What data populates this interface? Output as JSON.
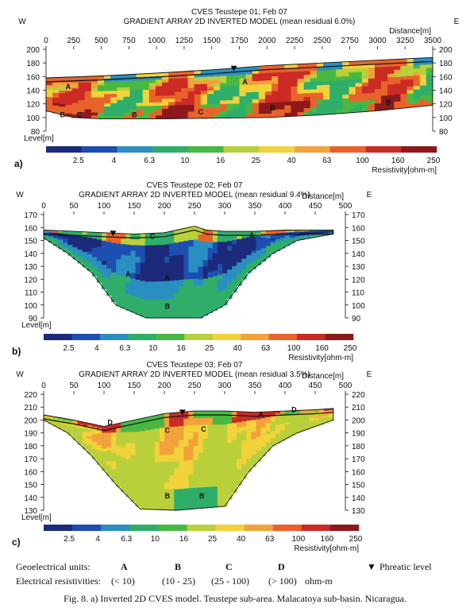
{
  "colors": {
    "ramp": [
      "#1c2a7a",
      "#1d4fb0",
      "#2a8fc0",
      "#2fae6a",
      "#49b843",
      "#b9d03a",
      "#f2d23a",
      "#f2a23a",
      "#e8632a",
      "#cc2a25",
      "#8c1a1c"
    ],
    "unit_A": "#2a3aa0",
    "unit_B": "#2fae6a",
    "unit_C": "#f2a23a",
    "unit_D": "#cc2a25",
    "outline": "#111111"
  },
  "chart_data": [
    {
      "type": "heatmap",
      "panel": "a)",
      "site_title": "CVES Teustepe 01; Feb 07",
      "title": "GRADIENT ARRAY 2D INVERTED MODEL (mean residual 6.0%)",
      "west": "W",
      "east": "E",
      "xlabel": "Distance[m]",
      "ylabel": "Level[m]",
      "xticks": [
        0,
        250,
        500,
        750,
        1000,
        1250,
        1500,
        1750,
        2000,
        2250,
        2500,
        2750,
        3000,
        3250,
        3500
      ],
      "xlim": [
        0,
        3500
      ],
      "yticks": [
        200,
        180,
        160,
        140,
        120,
        100,
        80
      ],
      "ylim": [
        80,
        200
      ],
      "surface": {
        "x": [
          0,
          500,
          1000,
          1500,
          1750,
          2000,
          2500,
          3000,
          3500
        ],
        "y": [
          158,
          161,
          165,
          170,
          173,
          176,
          180,
          184,
          188
        ]
      },
      "base": {
        "x": [
          0,
          250,
          500,
          1000,
          1500,
          2000,
          2500,
          3000,
          3500
        ],
        "y": [
          110,
          100,
          98,
          98,
          99,
          100,
          104,
          110,
          118
        ]
      },
      "phreatic_marker_x": 1700,
      "unit_labels": [
        {
          "text": "A",
          "x": 200,
          "y": 145
        },
        {
          "text": "A",
          "x": 1800,
          "y": 152
        },
        {
          "text": "B",
          "x": 150,
          "y": 104
        },
        {
          "text": "B",
          "x": 800,
          "y": 104
        },
        {
          "text": "B",
          "x": 2050,
          "y": 114
        },
        {
          "text": "B",
          "x": 3100,
          "y": 122
        },
        {
          "text": "C",
          "x": 300,
          "y": 104
        },
        {
          "text": "C",
          "x": 1400,
          "y": 108
        }
      ],
      "colorbar_ticks": [
        "2.5",
        "4",
        "6.3",
        "10",
        "16",
        "25",
        "40",
        "63",
        "100",
        "160",
        "250"
      ],
      "colorbar_label": "Resistivity[ohm-m]"
    },
    {
      "type": "heatmap",
      "panel": "b)",
      "site_title": "CVES Teustepe 02; Feb 07",
      "title": "GRADIENT ARRAY 2D INVERTED MODEL (mean residual 9.4%)",
      "west": "W",
      "east": "E",
      "xlabel": "Distance[m]",
      "ylabel": "Level[m]",
      "xticks": [
        0,
        50,
        100,
        150,
        200,
        250,
        300,
        350,
        400,
        450,
        500
      ],
      "xlim": [
        0,
        500
      ],
      "yticks": [
        170,
        160,
        150,
        140,
        130,
        120,
        110,
        100,
        90
      ],
      "ylim": [
        90,
        170
      ],
      "surface": {
        "x": [
          0,
          50,
          100,
          150,
          200,
          220,
          250,
          270,
          300,
          350,
          400,
          450,
          480
        ],
        "y": [
          158,
          157,
          156,
          155,
          156,
          158,
          161,
          158,
          157,
          157,
          158,
          158,
          158
        ]
      },
      "base": {
        "x": [
          0,
          40,
          80,
          120,
          170,
          260,
          300,
          340,
          380,
          420,
          480
        ],
        "y": [
          152,
          140,
          125,
          100,
          90,
          90,
          100,
          125,
          140,
          150,
          155
        ]
      },
      "phreatic_marker_x": 115,
      "unit_labels": [
        {
          "text": "A",
          "x": 140,
          "y": 124
        },
        {
          "text": "A",
          "x": 205,
          "y": 121
        },
        {
          "text": "A",
          "x": 345,
          "y": 154
        },
        {
          "text": "B",
          "x": 205,
          "y": 99
        },
        {
          "text": "C",
          "x": 180,
          "y": 153
        }
      ],
      "colorbar_ticks": [
        "2.5",
        "4",
        "6.3",
        "10",
        "16",
        "25",
        "40",
        "63",
        "100",
        "160",
        "250"
      ],
      "colorbar_label": "Resistivity[ohm-m]"
    },
    {
      "type": "heatmap",
      "panel": "c)",
      "site_title": "CVES Teustepe 03; Feb 07",
      "title": "GRADIENT ARRAY 2D INVERTED MODEL (mean residual 3.5%)",
      "west": "W",
      "east": "E",
      "xlabel": "Distance[m]",
      "ylabel": "Level[m]",
      "xticks": [
        0,
        50,
        100,
        150,
        200,
        250,
        300,
        350,
        400,
        450,
        500
      ],
      "xlim": [
        0,
        500
      ],
      "yticks": [
        220,
        210,
        200,
        190,
        180,
        170,
        160,
        150,
        140,
        130
      ],
      "ylim": [
        130,
        220
      ],
      "surface": {
        "x": [
          0,
          50,
          100,
          150,
          200,
          250,
          300,
          350,
          400,
          450,
          480
        ],
        "y": [
          204,
          200,
          195,
          200,
          205,
          207,
          207,
          206,
          207,
          208,
          209
        ]
      },
      "base": {
        "x": [
          0,
          40,
          80,
          120,
          160,
          220,
          300,
          340,
          380,
          420,
          480
        ],
        "y": [
          200,
          190,
          172,
          150,
          131,
          130,
          133,
          160,
          180,
          190,
          200
        ]
      },
      "phreatic_marker_x": 230,
      "unit_labels": [
        {
          "text": "A",
          "x": 360,
          "y": 204
        },
        {
          "text": "B",
          "x": 205,
          "y": 141
        },
        {
          "text": "B",
          "x": 262,
          "y": 141
        },
        {
          "text": "C",
          "x": 205,
          "y": 192
        },
        {
          "text": "C",
          "x": 265,
          "y": 193
        },
        {
          "text": "D",
          "x": 110,
          "y": 198
        },
        {
          "text": "D",
          "x": 415,
          "y": 208
        }
      ],
      "colorbar_ticks": [
        "2.5",
        "4",
        "6.3",
        "10",
        "16",
        "25",
        "40",
        "63",
        "100",
        "160",
        "250"
      ],
      "colorbar_label": "Resistivity[ohm-m]"
    }
  ],
  "legend": {
    "units_label": "Geoelectrical units:",
    "resist_label": "Electrical resistivities:",
    "units": [
      {
        "name": "A",
        "range": "(< 10)"
      },
      {
        "name": "B",
        "range": "(10 - 25)"
      },
      {
        "name": "C",
        "range": "(25 - 100)"
      },
      {
        "name": "D",
        "range": "(> 100)"
      }
    ],
    "unit_suffix": "ohm-m",
    "phreatic_symbol": "▼",
    "phreatic_label": "Phreatic level"
  },
  "caption": "Fig. 8. a) Inverted 2D CVES model. Teustepe sub-area. Malacatoya sub-basin. Nicaragua."
}
